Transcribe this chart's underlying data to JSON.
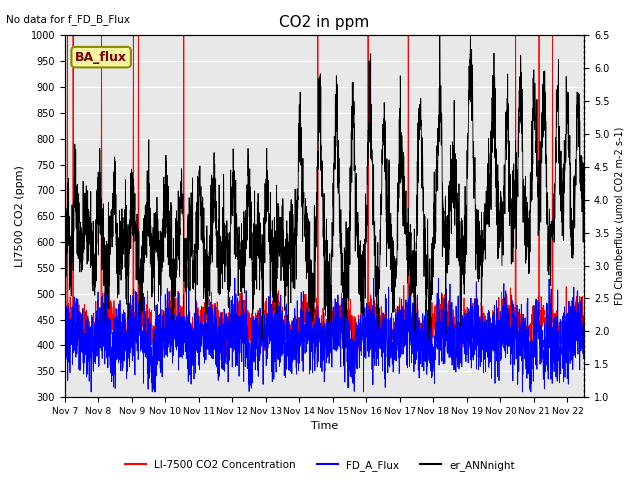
{
  "title": "CO2 in ppm",
  "top_left_text": "No data for f_FD_B_Flux",
  "ylabel_left": "LI7500 CO2 (ppm)",
  "ylabel_right": "FD Chamberflux (umol CO2 m-2 s-1)",
  "xlabel": "Time",
  "ylim_left": [
    300,
    1000
  ],
  "ylim_right": [
    1.0,
    6.5
  ],
  "xlim": [
    0,
    15.5
  ],
  "xtick_labels": [
    "Nov 7",
    "Nov 8",
    "Nov 9",
    "Nov 10",
    "Nov 11",
    "Nov 12",
    "Nov 13",
    "Nov 14",
    "Nov 15",
    "Nov 16",
    "Nov 17",
    "Nov 18",
    "Nov 19",
    "Nov 20",
    "Nov 21",
    "Nov 22"
  ],
  "xtick_positions": [
    0,
    1,
    2,
    3,
    4,
    5,
    6,
    7,
    8,
    9,
    10,
    11,
    12,
    13,
    14,
    15
  ],
  "plot_bg_color": "#e8e8e8",
  "grid_color": "white",
  "seed": 42
}
